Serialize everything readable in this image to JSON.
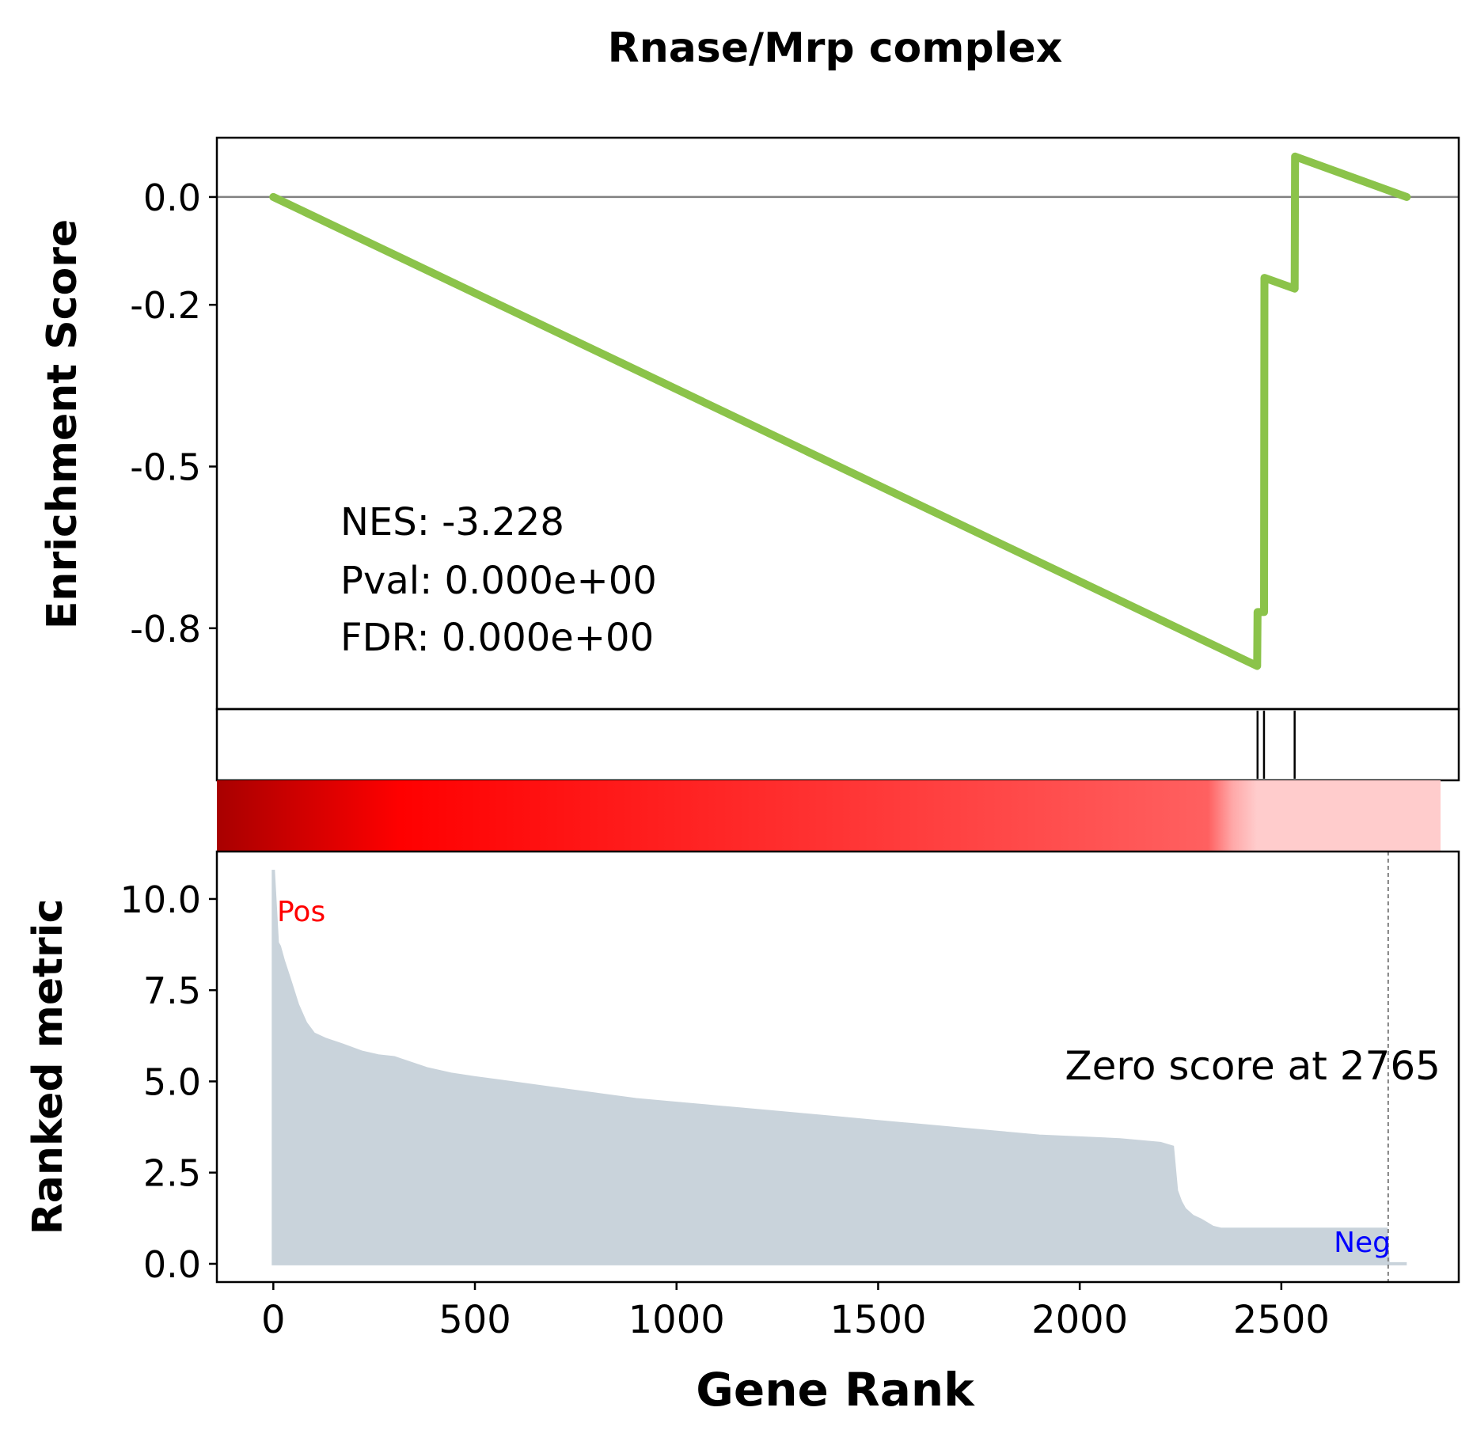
{
  "title": "Rnase/Mrp complex",
  "chart_data": [
    {
      "type": "line",
      "panel": "enrichment-score",
      "ylabel": "Enrichment Score",
      "yticks": [
        0.0,
        -0.2,
        -0.5,
        -0.8
      ],
      "ytick_labels": [
        "0.0",
        "-0.2",
        "-0.5",
        "-0.8"
      ],
      "ylim": [
        -0.95,
        0.11
      ],
      "xlim": [
        -140,
        2940
      ],
      "zero_line": true,
      "line_color": "#8bc34a",
      "series": [
        {
          "x": [
            0,
            2440,
            2441,
            2457,
            2458,
            2533,
            2534,
            2811
          ],
          "y": [
            0.0,
            -0.87,
            -0.77,
            -0.77,
            -0.15,
            -0.17,
            0.075,
            0.0
          ]
        }
      ],
      "annotations": [
        "NES: -3.228",
        "Pval: 0.000e+00",
        "FDR: 0.000e+00"
      ]
    },
    {
      "type": "hits",
      "panel": "gene-set-hits",
      "hit_ranks": [
        2441,
        2457,
        2533
      ]
    },
    {
      "type": "heatmap",
      "panel": "rank-colorbar",
      "colormap": "seismic-positive",
      "color_dark": "#a80000",
      "color_mid": "#ff0000",
      "color_light": "#ffcccc"
    },
    {
      "type": "area",
      "panel": "ranked-metric",
      "ylabel": "Ranked metric",
      "xlabel": "Gene Rank",
      "yticks": [
        0.0,
        2.5,
        5.0,
        7.5,
        10.0
      ],
      "ytick_labels": [
        "0.0",
        "2.5",
        "5.0",
        "7.5",
        "10.0"
      ],
      "xticks": [
        0,
        500,
        1000,
        1500,
        2000,
        2500
      ],
      "xtick_labels": [
        "0",
        "500",
        "1000",
        "1500",
        "2000",
        "2500"
      ],
      "ylim": [
        -0.5,
        11.3
      ],
      "xlim": [
        -140,
        2940
      ],
      "fill_color": "#c9d3db",
      "x": [
        0,
        10,
        15,
        25,
        40,
        60,
        80,
        100,
        130,
        170,
        220,
        260,
        300,
        340,
        380,
        440,
        500,
        600,
        700,
        800,
        900,
        1000,
        1100,
        1200,
        1300,
        1400,
        1500,
        1600,
        1700,
        1800,
        1900,
        2000,
        2100,
        2200,
        2230,
        2240,
        2250,
        2260,
        2280,
        2300,
        2330,
        2350,
        2400,
        2500,
        2600,
        2700,
        2760,
        2765,
        2811
      ],
      "values": [
        10.8,
        8.8,
        8.7,
        8.3,
        7.8,
        7.1,
        6.6,
        6.3,
        6.15,
        6.0,
        5.8,
        5.7,
        5.65,
        5.5,
        5.35,
        5.2,
        5.1,
        4.95,
        4.8,
        4.65,
        4.5,
        4.4,
        4.3,
        4.2,
        4.1,
        4.0,
        3.9,
        3.8,
        3.7,
        3.6,
        3.5,
        3.45,
        3.4,
        3.3,
        3.2,
        2.0,
        1.7,
        1.5,
        1.3,
        1.2,
        1.0,
        0.95,
        0.95,
        0.95,
        0.95,
        0.95,
        0.95,
        0.0,
        0.0
      ],
      "zero_score_at": 2765,
      "annotations": [
        "Zero score at 2765"
      ],
      "pos_label": "Pos",
      "neg_label": "Neg",
      "pos_color": "#ff0000",
      "neg_color": "#0000ff"
    }
  ]
}
